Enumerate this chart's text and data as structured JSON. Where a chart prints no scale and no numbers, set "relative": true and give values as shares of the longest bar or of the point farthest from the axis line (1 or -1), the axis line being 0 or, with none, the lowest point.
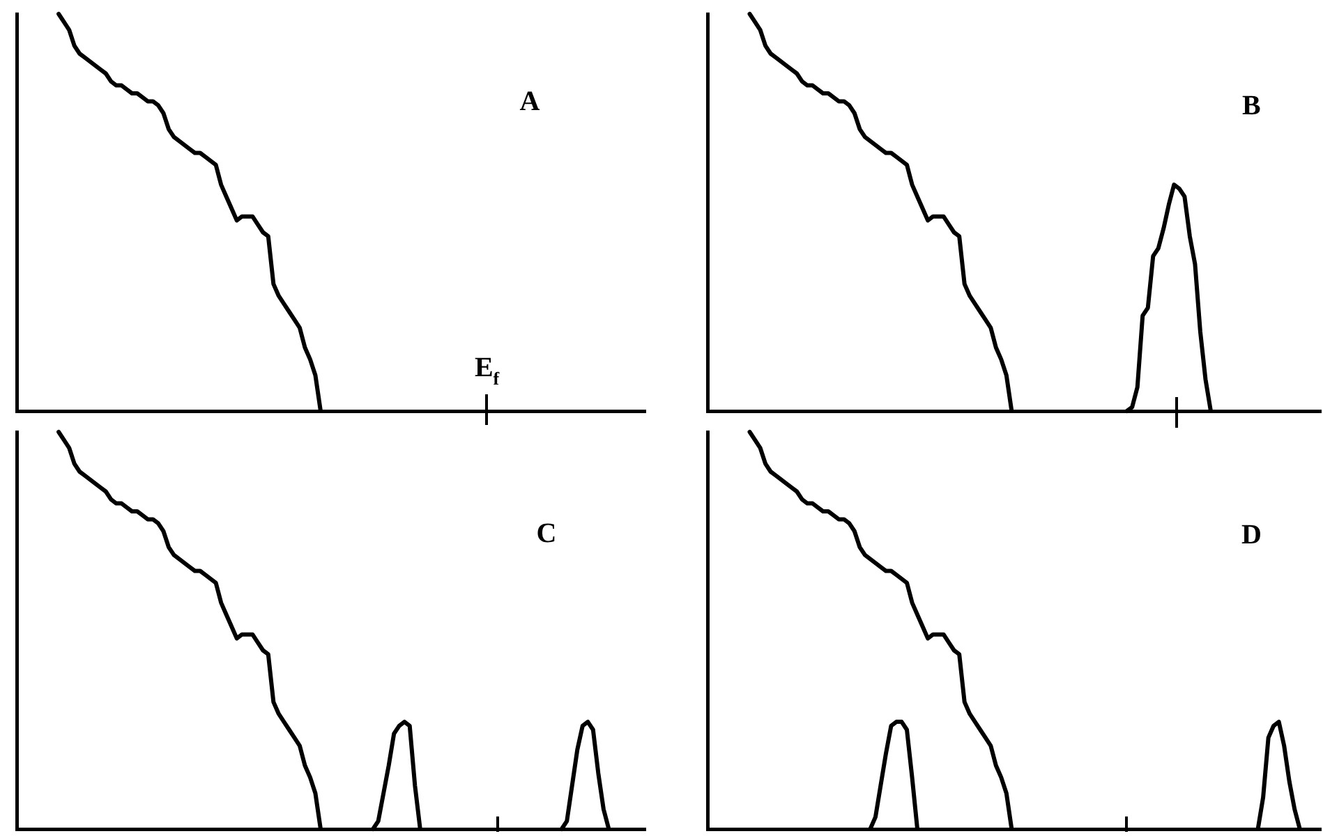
{
  "chart_data": [
    {
      "type": "line",
      "title": "A",
      "relative": true,
      "annotations": [
        "E$_{f}$"
      ],
      "categories": [
        null,
        null,
        null,
        null,
        null,
        null,
        null,
        null,
        null,
        null,
        null,
        null,
        null,
        null,
        null,
        null,
        null,
        null,
        null,
        null,
        null,
        null,
        null,
        null,
        null,
        null,
        null,
        null,
        null,
        null,
        null,
        null,
        null,
        null,
        null,
        null,
        null,
        null,
        null,
        null,
        null,
        null,
        null,
        null,
        null,
        null,
        null,
        null,
        null,
        null,
        null,
        null,
        null,
        null,
        null,
        null,
        null,
        null,
        null,
        null,
        null,
        null,
        null,
        null,
        null,
        null,
        null,
        null,
        null,
        null,
        null,
        null,
        null,
        null,
        null,
        null,
        null,
        null,
        null,
        null,
        null,
        null,
        null,
        null,
        null,
        null,
        null,
        null,
        null,
        null,
        null,
        null,
        null,
        null,
        null,
        null,
        null,
        null,
        null,
        null,
        null,
        null,
        null,
        null,
        null,
        null,
        null,
        null,
        null,
        null,
        null,
        null,
        null,
        null,
        null,
        null,
        null,
        null,
        null,
        null,
        null
      ],
      "series": [
        {
          "color": "#000000",
          "values": [
            null,
            null,
            null,
            null,
            null,
            null,
            null,
            null,
            1,
            0.98,
            0.96,
            0.92,
            0.9,
            0.89,
            0.88,
            0.87,
            0.86,
            0.85,
            0.83,
            0.82,
            0.82,
            0.81,
            0.8,
            0.8,
            0.79,
            0.78,
            0.78,
            0.77,
            0.75,
            0.71,
            0.69,
            0.68,
            0.67,
            0.66,
            0.65,
            0.65,
            0.64,
            0.63,
            0.62,
            0.57,
            0.54,
            0.51,
            0.48,
            0.49,
            0.49,
            0.49,
            0.47,
            0.45,
            0.44,
            0.32,
            0.29,
            0.27,
            0.25,
            0.23,
            0.21,
            0.16,
            0.13,
            0.09,
            0,
            null,
            null,
            null,
            null,
            null,
            null,
            null,
            null,
            null,
            null,
            null,
            null,
            null,
            null,
            null,
            null,
            null,
            null,
            null,
            null,
            null,
            null,
            null,
            null,
            null,
            null,
            null,
            null,
            null,
            null,
            null,
            null,
            null,
            null,
            null,
            null,
            null,
            null,
            null,
            null,
            null,
            null,
            null,
            null,
            null,
            null,
            null,
            null,
            null,
            null,
            null,
            null,
            null,
            null,
            null,
            null,
            null,
            null,
            null,
            null,
            null,
            null
          ]
        }
      ]
    },
    {
      "type": "line",
      "title": "B",
      "relative": true,
      "categories": [
        null,
        null,
        null,
        null,
        null,
        null,
        null,
        null,
        null,
        null,
        null,
        null,
        null,
        null,
        null,
        null,
        null,
        null,
        null,
        null,
        null,
        null,
        null,
        null,
        null,
        null,
        null,
        null,
        null,
        null,
        null,
        null,
        null,
        null,
        null,
        null,
        null,
        null,
        null,
        null,
        null,
        null,
        null,
        null,
        null,
        null,
        null,
        null,
        null,
        null,
        null,
        null,
        null,
        null,
        null,
        null,
        null,
        null,
        null,
        null,
        null,
        null,
        null,
        null,
        null,
        null,
        null,
        null,
        null,
        null,
        null,
        null,
        null,
        null,
        null,
        null,
        null,
        null,
        null,
        null,
        null,
        null,
        null,
        null,
        null,
        null,
        null,
        null,
        null,
        null,
        null,
        null,
        null,
        null,
        null,
        null,
        null,
        null,
        null,
        null,
        null,
        null,
        null,
        null,
        null,
        null,
        null,
        null,
        null,
        null,
        null,
        null,
        null,
        null,
        null,
        null,
        null,
        null
      ],
      "series": [
        {
          "color": "#000000",
          "values": [
            null,
            null,
            null,
            null,
            null,
            null,
            null,
            null,
            1,
            0.98,
            0.96,
            0.92,
            0.9,
            0.89,
            0.88,
            0.87,
            0.86,
            0.85,
            0.83,
            0.82,
            0.82,
            0.81,
            0.8,
            0.8,
            0.79,
            0.78,
            0.78,
            0.77,
            0.75,
            0.71,
            0.69,
            0.68,
            0.67,
            0.66,
            0.65,
            0.65,
            0.64,
            0.63,
            0.62,
            0.57,
            0.54,
            0.51,
            0.48,
            0.49,
            0.49,
            0.49,
            0.47,
            0.45,
            0.44,
            0.32,
            0.29,
            0.27,
            0.25,
            0.23,
            0.21,
            0.16,
            0.13,
            0.09,
            0,
            null,
            null,
            null,
            null,
            null,
            null,
            null,
            null,
            null,
            null,
            null,
            null,
            null,
            null,
            null,
            null,
            null,
            null,
            null,
            null,
            null,
            null,
            null,
            null,
            null,
            null,
            null,
            null,
            null,
            null,
            null,
            null,
            null,
            null,
            null,
            null,
            null,
            null,
            null,
            null,
            null,
            null,
            null,
            null,
            null,
            null,
            null,
            null,
            null,
            null,
            null,
            null,
            null,
            null,
            null,
            null,
            null,
            null,
            null
          ]
        },
        {
          "color": "#000000",
          "values": [
            null,
            null,
            null,
            null,
            null,
            null,
            null,
            null,
            null,
            null,
            null,
            null,
            null,
            null,
            null,
            null,
            null,
            null,
            null,
            null,
            null,
            null,
            null,
            null,
            null,
            null,
            null,
            null,
            null,
            null,
            null,
            null,
            null,
            null,
            null,
            null,
            null,
            null,
            null,
            null,
            null,
            null,
            null,
            null,
            null,
            null,
            null,
            null,
            null,
            null,
            null,
            null,
            null,
            null,
            null,
            null,
            null,
            null,
            null,
            null,
            null,
            null,
            null,
            null,
            null,
            null,
            null,
            null,
            null,
            null,
            null,
            null,
            null,
            null,
            null,
            null,
            null,
            null,
            null,
            null,
            0,
            0.01,
            0.06,
            0.24,
            0.26,
            0.39,
            0.41,
            0.46,
            0.52,
            0.57,
            0.56,
            0.54,
            0.44,
            0.37,
            0.2,
            0.08,
            0,
            null,
            null,
            null,
            null,
            null,
            null,
            null,
            null,
            null,
            null,
            null,
            null,
            null,
            null,
            null,
            null,
            null,
            null,
            null,
            null,
            null
          ]
        }
      ]
    },
    {
      "type": "line",
      "title": "C",
      "relative": true,
      "categories": [
        null,
        null,
        null,
        null,
        null,
        null,
        null,
        null,
        null,
        null,
        null,
        null,
        null,
        null,
        null,
        null,
        null,
        null,
        null,
        null,
        null,
        null,
        null,
        null,
        null,
        null,
        null,
        null,
        null,
        null,
        null,
        null,
        null,
        null,
        null,
        null,
        null,
        null,
        null,
        null,
        null,
        null,
        null,
        null,
        null,
        null,
        null,
        null,
        null,
        null,
        null,
        null,
        null,
        null,
        null,
        null,
        null,
        null,
        null,
        null,
        null,
        null,
        null,
        null,
        null,
        null,
        null,
        null,
        null,
        null,
        null,
        null,
        null,
        null,
        null,
        null,
        null,
        null,
        null,
        null,
        null,
        null,
        null,
        null,
        null,
        null,
        null,
        null,
        null,
        null,
        null,
        null,
        null,
        null,
        null,
        null,
        null,
        null,
        null,
        null,
        null,
        null,
        null,
        null,
        null,
        null,
        null,
        null,
        null,
        null,
        null,
        null,
        null,
        null,
        null,
        null,
        null,
        null,
        null,
        null,
        null
      ],
      "series": [
        {
          "color": "#000000",
          "values": [
            null,
            null,
            null,
            null,
            null,
            null,
            null,
            null,
            1,
            0.98,
            0.96,
            0.92,
            0.9,
            0.89,
            0.88,
            0.87,
            0.86,
            0.85,
            0.83,
            0.82,
            0.82,
            0.81,
            0.8,
            0.8,
            0.79,
            0.78,
            0.78,
            0.77,
            0.75,
            0.71,
            0.69,
            0.68,
            0.67,
            0.66,
            0.65,
            0.65,
            0.64,
            0.63,
            0.62,
            0.57,
            0.54,
            0.51,
            0.48,
            0.49,
            0.49,
            0.49,
            0.47,
            0.45,
            0.44,
            0.32,
            0.29,
            0.27,
            0.25,
            0.23,
            0.21,
            0.16,
            0.13,
            0.09,
            0,
            null,
            null,
            null,
            null,
            null,
            null,
            null,
            null,
            null,
            null,
            null,
            null,
            null,
            null,
            null,
            null,
            null,
            null,
            null,
            null,
            null,
            null,
            null,
            null,
            null,
            null,
            null,
            null,
            null,
            null,
            null,
            null,
            null,
            null,
            null,
            null,
            null,
            null,
            null,
            null,
            null,
            null,
            null,
            null,
            null,
            null,
            null,
            null,
            null,
            null,
            null,
            null,
            null,
            null,
            null,
            null,
            null,
            null,
            null,
            null,
            null,
            null
          ]
        },
        {
          "color": "#000000",
          "values": [
            null,
            null,
            null,
            null,
            null,
            null,
            null,
            null,
            null,
            null,
            null,
            null,
            null,
            null,
            null,
            null,
            null,
            null,
            null,
            null,
            null,
            null,
            null,
            null,
            null,
            null,
            null,
            null,
            null,
            null,
            null,
            null,
            null,
            null,
            null,
            null,
            null,
            null,
            null,
            null,
            null,
            null,
            null,
            null,
            null,
            null,
            null,
            null,
            null,
            null,
            null,
            null,
            null,
            null,
            null,
            null,
            null,
            null,
            null,
            null,
            null,
            null,
            null,
            null,
            null,
            null,
            null,
            null,
            0,
            0.02,
            0.09,
            0.16,
            0.24,
            0.26,
            0.27,
            0.26,
            0.11,
            0,
            null,
            null,
            null,
            null,
            null,
            null,
            null,
            null,
            null,
            null,
            null,
            null,
            null,
            null,
            null,
            null,
            null,
            null,
            null,
            null,
            null,
            null,
            null,
            null,
            null,
            null,
            0,
            0.02,
            0.11,
            0.2,
            0.26,
            0.27,
            0.25,
            0.14,
            0.05,
            0,
            null,
            null,
            null,
            null,
            null,
            null,
            null
          ]
        }
      ]
    },
    {
      "type": "line",
      "title": "D",
      "relative": true,
      "categories": [
        null,
        null,
        null,
        null,
        null,
        null,
        null,
        null,
        null,
        null,
        null,
        null,
        null,
        null,
        null,
        null,
        null,
        null,
        null,
        null,
        null,
        null,
        null,
        null,
        null,
        null,
        null,
        null,
        null,
        null,
        null,
        null,
        null,
        null,
        null,
        null,
        null,
        null,
        null,
        null,
        null,
        null,
        null,
        null,
        null,
        null,
        null,
        null,
        null,
        null,
        null,
        null,
        null,
        null,
        null,
        null,
        null,
        null,
        null,
        null,
        null,
        null,
        null,
        null,
        null,
        null,
        null,
        null,
        null,
        null,
        null,
        null,
        null,
        null,
        null,
        null,
        null,
        null,
        null,
        null,
        null,
        null,
        null,
        null,
        null,
        null,
        null,
        null,
        null,
        null,
        null,
        null,
        null,
        null,
        null,
        null,
        null,
        null,
        null,
        null,
        null,
        null,
        null,
        null,
        null,
        null,
        null,
        null,
        null,
        null,
        null,
        null,
        null,
        null,
        null,
        null,
        null,
        null
      ],
      "series": [
        {
          "color": "#000000",
          "values": [
            null,
            null,
            null,
            null,
            null,
            null,
            null,
            null,
            1,
            0.98,
            0.96,
            0.92,
            0.9,
            0.89,
            0.88,
            0.87,
            0.86,
            0.85,
            0.83,
            0.82,
            0.82,
            0.81,
            0.8,
            0.8,
            0.79,
            0.78,
            0.78,
            0.77,
            0.75,
            0.71,
            0.69,
            0.68,
            0.67,
            0.66,
            0.65,
            0.65,
            0.64,
            0.63,
            0.62,
            0.57,
            0.54,
            0.51,
            0.48,
            0.49,
            0.49,
            0.49,
            0.47,
            0.45,
            0.44,
            0.32,
            0.29,
            0.27,
            0.25,
            0.23,
            0.21,
            0.16,
            0.13,
            0.09,
            0,
            null,
            null,
            null,
            null,
            null,
            null,
            null,
            null,
            null,
            null,
            null,
            null,
            null,
            null,
            null,
            null,
            null,
            null,
            null,
            null,
            null,
            null,
            null,
            null,
            null,
            null,
            null,
            null,
            null,
            null,
            null,
            null,
            null,
            null,
            null,
            null,
            null,
            null,
            null,
            null,
            null,
            null,
            null,
            null,
            null,
            null,
            null,
            null,
            null,
            null,
            null,
            null,
            null,
            null,
            null,
            null,
            null,
            null,
            null
          ]
        },
        {
          "color": "#000000",
          "values": [
            null,
            null,
            null,
            null,
            null,
            null,
            null,
            null,
            null,
            null,
            null,
            null,
            null,
            null,
            null,
            null,
            null,
            null,
            null,
            null,
            null,
            null,
            null,
            null,
            null,
            null,
            null,
            null,
            null,
            null,
            null,
            0,
            0.03,
            0.11,
            0.19,
            0.26,
            0.27,
            0.27,
            0.25,
            0.13,
            0,
            null,
            null,
            null,
            null,
            null,
            null,
            null,
            null,
            null,
            null,
            null,
            null,
            null,
            null,
            null,
            null,
            null,
            null,
            null,
            null,
            null,
            null,
            null,
            null,
            null,
            null,
            null,
            null,
            null,
            null,
            null,
            null,
            null,
            null,
            null,
            null,
            null,
            null,
            null,
            null,
            null,
            null,
            null,
            null,
            null,
            null,
            null,
            null,
            null,
            null,
            null,
            null,
            null,
            null,
            null,
            null,
            null,
            null,
            null,
            null,
            null,
            null,
            null,
            null,
            0,
            0.08,
            0.23,
            0.26,
            0.27,
            0.21,
            0.12,
            0.05,
            0,
            null,
            null,
            null,
            null
          ]
        }
      ]
    }
  ]
}
